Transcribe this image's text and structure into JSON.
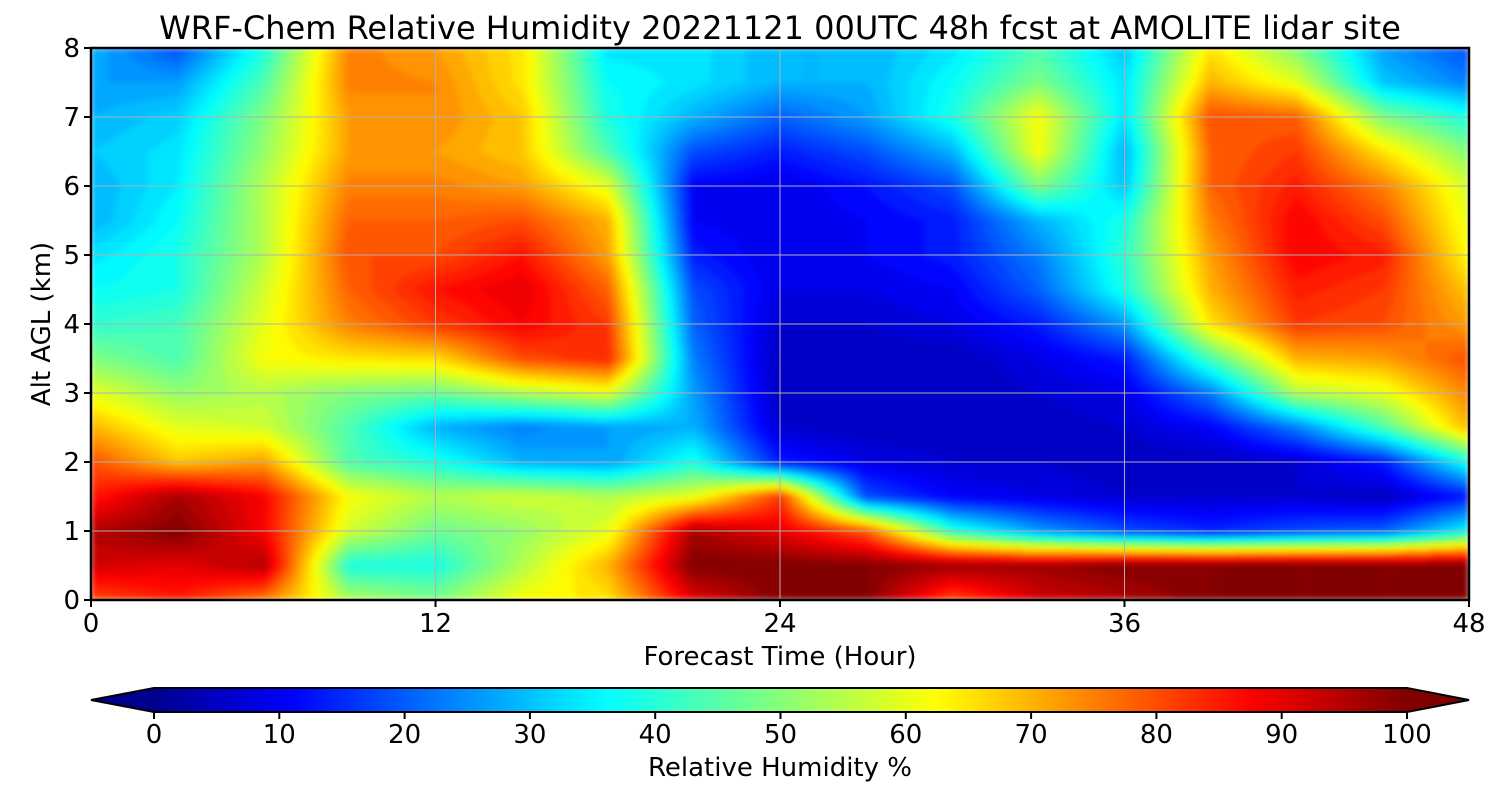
{
  "chart_data": {
    "type": "heatmap",
    "title": "WRF-Chem Relative Humidity 20221121 00UTC 48h fcst at AMOLITE lidar site",
    "xlabel": "Forecast Time (Hour)",
    "ylabel": "Alt AGL (km)",
    "xlim": [
      0,
      48
    ],
    "ylim": [
      0,
      8
    ],
    "xticks": [
      "0",
      "12",
      "24",
      "36",
      "48"
    ],
    "yticks": [
      "0",
      "1",
      "2",
      "3",
      "4",
      "5",
      "6",
      "7",
      "8"
    ],
    "grid": true,
    "colormap": "jet",
    "colorbar": {
      "label": "Relative Humidity %",
      "range": [
        0,
        100
      ],
      "ticks": [
        "0",
        "10",
        "20",
        "30",
        "40",
        "50",
        "60",
        "70",
        "80",
        "90",
        "100"
      ],
      "extend": "both",
      "orientation": "horizontal"
    },
    "x": [
      0,
      3,
      6,
      9,
      12,
      15,
      18,
      21,
      24,
      27,
      30,
      33,
      36,
      39,
      42,
      45,
      48
    ],
    "y": [
      0,
      0.5,
      1,
      1.5,
      2,
      2.5,
      3,
      3.5,
      4,
      4.5,
      5,
      5.5,
      6,
      6.5,
      7,
      7.5,
      8
    ],
    "z": [
      [
        80,
        85,
        75,
        55,
        50,
        62,
        65,
        90,
        100,
        100,
        80,
        92,
        95,
        100,
        100,
        100,
        100
      ],
      [
        92,
        90,
        95,
        40,
        40,
        55,
        70,
        100,
        100,
        100,
        97,
        97,
        100,
        100,
        100,
        100,
        100
      ],
      [
        95,
        100,
        88,
        58,
        48,
        52,
        60,
        96,
        90,
        78,
        42,
        28,
        20,
        16,
        20,
        22,
        38
      ],
      [
        85,
        96,
        88,
        62,
        55,
        58,
        55,
        60,
        82,
        20,
        12,
        10,
        8,
        8,
        8,
        6,
        15
      ],
      [
        80,
        68,
        72,
        45,
        40,
        30,
        28,
        40,
        15,
        10,
        8,
        8,
        6,
        6,
        8,
        15,
        40
      ],
      [
        70,
        60,
        58,
        45,
        30,
        25,
        28,
        30,
        8,
        6,
        6,
        6,
        8,
        12,
        25,
        45,
        70
      ],
      [
        60,
        52,
        55,
        50,
        48,
        55,
        60,
        28,
        6,
        6,
        6,
        8,
        10,
        25,
        55,
        60,
        75
      ],
      [
        50,
        45,
        62,
        65,
        66,
        80,
        84,
        25,
        6,
        6,
        6,
        10,
        15,
        45,
        70,
        72,
        80
      ],
      [
        42,
        44,
        60,
        75,
        82,
        88,
        82,
        22,
        8,
        8,
        10,
        15,
        28,
        65,
        82,
        80,
        72
      ],
      [
        38,
        40,
        58,
        78,
        86,
        90,
        78,
        20,
        10,
        10,
        12,
        22,
        40,
        70,
        85,
        82,
        68
      ],
      [
        35,
        40,
        55,
        80,
        80,
        86,
        72,
        15,
        10,
        12,
        15,
        25,
        42,
        72,
        88,
        85,
        62
      ],
      [
        30,
        38,
        55,
        78,
        78,
        80,
        70,
        12,
        10,
        12,
        15,
        30,
        40,
        75,
        88,
        80,
        60
      ],
      [
        30,
        36,
        55,
        75,
        75,
        72,
        60,
        12,
        10,
        14,
        20,
        50,
        32,
        78,
        85,
        75,
        58
      ],
      [
        32,
        35,
        52,
        72,
        72,
        68,
        45,
        20,
        15,
        20,
        30,
        62,
        30,
        78,
        82,
        65,
        50
      ],
      [
        30,
        33,
        50,
        72,
        74,
        68,
        40,
        30,
        22,
        28,
        40,
        62,
        35,
        80,
        78,
        50,
        40
      ],
      [
        28,
        28,
        45,
        75,
        74,
        65,
        38,
        35,
        30,
        30,
        38,
        50,
        35,
        70,
        60,
        32,
        25
      ],
      [
        30,
        20,
        40,
        75,
        72,
        65,
        35,
        35,
        30,
        30,
        35,
        45,
        32,
        65,
        50,
        28,
        20
      ]
    ]
  }
}
